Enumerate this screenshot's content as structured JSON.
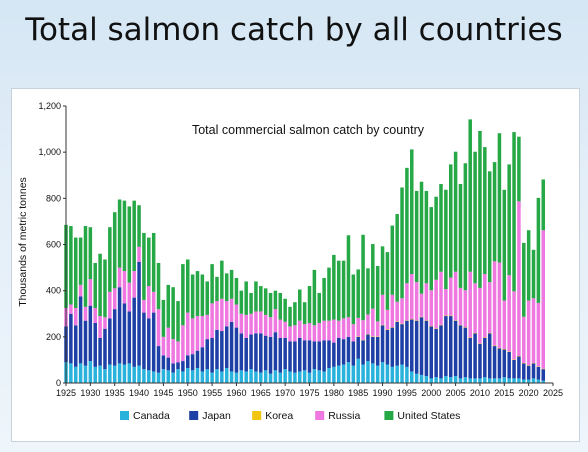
{
  "slide": {
    "title": "Total salmon catch by all countries"
  },
  "chart_data": {
    "type": "bar",
    "stacked": true,
    "title": "Total commercial salmon catch by country",
    "xlabel": "",
    "ylabel": "Thousands of metric tonnes",
    "ylim": [
      0,
      1200
    ],
    "yticks": [
      "0",
      "200",
      "400",
      "600",
      "800",
      "1,000",
      "1,200"
    ],
    "xlim": [
      1925,
      2025
    ],
    "xticks": [
      "1925",
      "1930",
      "1935",
      "1940",
      "1945",
      "1950",
      "1955",
      "1960",
      "1965",
      "1970",
      "1975",
      "1980",
      "1985",
      "1990",
      "1995",
      "2000",
      "2005",
      "2010",
      "2015",
      "2020",
      "2025"
    ],
    "grid": false,
    "legend_position": "bottom",
    "years": [
      1925,
      1926,
      1927,
      1928,
      1929,
      1930,
      1931,
      1932,
      1933,
      1934,
      1935,
      1936,
      1937,
      1938,
      1939,
      1940,
      1941,
      1942,
      1943,
      1944,
      1945,
      1946,
      1947,
      1948,
      1949,
      1950,
      1951,
      1952,
      1953,
      1954,
      1955,
      1956,
      1957,
      1958,
      1959,
      1960,
      1961,
      1962,
      1963,
      1964,
      1965,
      1966,
      1967,
      1968,
      1969,
      1970,
      1971,
      1972,
      1973,
      1974,
      1975,
      1976,
      1977,
      1978,
      1979,
      1980,
      1981,
      1982,
      1983,
      1984,
      1985,
      1986,
      1987,
      1988,
      1989,
      1990,
      1991,
      1992,
      1993,
      1994,
      1995,
      1996,
      1997,
      1998,
      1999,
      2000,
      2001,
      2002,
      2003,
      2004,
      2005,
      2006,
      2007,
      2008,
      2009,
      2010,
      2011,
      2012,
      2013,
      2014,
      2015,
      2016,
      2017,
      2018,
      2019,
      2020,
      2021,
      2022,
      2023
    ],
    "series": [
      {
        "name": "Canada",
        "color": "#29b3dc",
        "values": [
          90,
          85,
          70,
          85,
          75,
          95,
          70,
          75,
          60,
          80,
          75,
          85,
          80,
          85,
          70,
          75,
          60,
          55,
          50,
          45,
          60,
          55,
          45,
          60,
          50,
          65,
          55,
          65,
          50,
          60,
          45,
          60,
          50,
          65,
          50,
          45,
          55,
          50,
          60,
          50,
          45,
          55,
          40,
          55,
          45,
          60,
          50,
          45,
          50,
          55,
          45,
          60,
          55,
          50,
          65,
          70,
          75,
          80,
          90,
          75,
          105,
          80,
          95,
          85,
          75,
          90,
          80,
          70,
          75,
          80,
          70,
          50,
          40,
          35,
          30,
          20,
          25,
          20,
          30,
          25,
          30,
          20,
          25,
          20,
          20,
          20,
          25,
          20,
          20,
          20,
          25,
          20,
          20,
          20,
          15,
          15,
          20,
          15,
          10
        ]
      },
      {
        "name": "Japan",
        "color": "#1e3fa6",
        "values": [
          155,
          215,
          180,
          290,
          195,
          240,
          190,
          120,
          175,
          200,
          245,
          330,
          265,
          225,
          300,
          450,
          245,
          225,
          255,
          115,
          60,
          55,
          40,
          30,
          45,
          55,
          70,
          75,
          105,
          130,
          150,
          170,
          175,
          180,
          215,
          195,
          160,
          145,
          150,
          165,
          170,
          150,
          160,
          165,
          150,
          135,
          130,
          135,
          145,
          130,
          140,
          120,
          125,
          135,
          120,
          105,
          120,
          110,
          110,
          105,
          95,
          105,
          115,
          115,
          125,
          160,
          150,
          170,
          190,
          175,
          200,
          225,
          230,
          250,
          240,
          225,
          210,
          230,
          260,
          265,
          240,
          230,
          215,
          175,
          195,
          150,
          170,
          195,
          140,
          130,
          120,
          115,
          80,
          95,
          70,
          60,
          65,
          55,
          50
        ]
      },
      {
        "name": "Korea",
        "color": "#f2c511",
        "values": [
          0,
          0,
          0,
          0,
          0,
          0,
          0,
          0,
          0,
          0,
          0,
          0,
          0,
          0,
          0,
          0,
          0,
          0,
          0,
          0,
          0,
          0,
          0,
          0,
          0,
          0,
          0,
          0,
          0,
          0,
          0,
          0,
          0,
          0,
          0,
          0,
          0,
          0,
          0,
          0,
          0,
          0,
          0,
          0,
          0,
          0,
          0,
          0,
          0,
          0,
          0,
          0,
          0,
          0,
          0,
          0,
          0,
          0,
          0,
          0,
          2,
          2,
          2,
          2,
          2,
          2,
          2,
          2,
          2,
          2,
          2,
          2,
          2,
          2,
          2,
          2,
          2,
          2,
          2,
          2,
          2,
          2,
          2,
          2,
          2,
          2,
          2,
          2,
          2,
          2,
          2,
          2,
          2,
          2,
          2,
          2,
          2,
          2,
          2
        ]
      },
      {
        "name": "Russia",
        "color": "#ee78e0",
        "values": [
          80,
          40,
          75,
          50,
          60,
          115,
          65,
          95,
          50,
          115,
          90,
          85,
          140,
          125,
          115,
          65,
          55,
          140,
          90,
          160,
          80,
          130,
          105,
          90,
          155,
          185,
          155,
          150,
          135,
          105,
          150,
          125,
          140,
          110,
          100,
          100,
          85,
          100,
          90,
          95,
          95,
          90,
          85,
          100,
          80,
          70,
          65,
          70,
          75,
          70,
          75,
          70,
          80,
          85,
          85,
          100,
          75,
          90,
          85,
          75,
          80,
          85,
          85,
          120,
          65,
          130,
          85,
          140,
          85,
          110,
          160,
          195,
          165,
          100,
          160,
          155,
          210,
          230,
          115,
          165,
          210,
          160,
          160,
          285,
          215,
          240,
          275,
          220,
          365,
          370,
          210,
          330,
          295,
          670,
          200,
          280,
          280,
          275,
          600
        ]
      },
      {
        "name": "United States",
        "color": "#27a847",
        "values": [
          360,
          340,
          305,
          205,
          350,
          225,
          195,
          270,
          250,
          280,
          330,
          295,
          305,
          330,
          305,
          180,
          290,
          210,
          255,
          200,
          160,
          185,
          225,
          175,
          265,
          230,
          190,
          195,
          180,
          145,
          170,
          105,
          165,
          120,
          125,
          115,
          100,
          145,
          90,
          130,
          110,
          115,
          105,
          80,
          115,
          100,
          85,
          100,
          135,
          95,
          160,
          240,
          130,
          185,
          230,
          280,
          260,
          250,
          355,
          215,
          210,
          370,
          200,
          280,
          240,
          210,
          250,
          300,
          380,
          480,
          500,
          540,
          395,
          485,
          400,
          360,
          360,
          380,
          430,
          490,
          520,
          450,
          550,
          660,
          570,
          680,
          550,
          480,
          430,
          560,
          480,
          480,
          690,
          280,
          320,
          305,
          210,
          455,
          220
        ]
      }
    ]
  }
}
